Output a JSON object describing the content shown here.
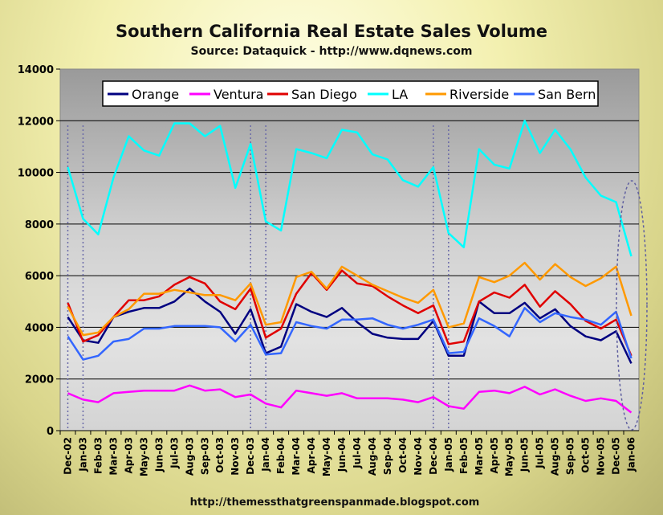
{
  "chart_data": {
    "type": "line",
    "title": "Southern California Real Estate Sales Volume",
    "subtitle": "Source: Dataquick - http://www.dqnews.com",
    "footer": "http://themessthatgreenspanmade.blogspot.com",
    "ylim": [
      0,
      14000
    ],
    "yticks": [
      0,
      2000,
      4000,
      6000,
      8000,
      10000,
      12000,
      14000
    ],
    "grid": true,
    "legend_position": "top",
    "categories": [
      "Dec-02",
      "Jan-03",
      "Feb-03",
      "Mar-03",
      "Apr-03",
      "May-03",
      "Jun-03",
      "Jul-03",
      "Aug-03",
      "Sep-03",
      "Oct-03",
      "Nov-03",
      "Dec-03",
      "Jan-04",
      "Feb-04",
      "Mar-04",
      "Apr-04",
      "May-04",
      "Jun-04",
      "Jul-04",
      "Aug-04",
      "Sep-04",
      "Oct-04",
      "Nov-04",
      "Dec-04",
      "Jan-05",
      "Feb-05",
      "Mar-05",
      "Apr-05",
      "May-05",
      "Jun-05",
      "Jul-05",
      "Aug-05",
      "Sep-05",
      "Oct-05",
      "Nov-05",
      "Dec-05",
      "Jan-06"
    ],
    "series": [
      {
        "name": "Orange",
        "color": "#000080",
        "values": [
          4400,
          3500,
          3400,
          4400,
          4600,
          4750,
          4750,
          5000,
          5500,
          5000,
          4600,
          3750,
          4700,
          3000,
          3250,
          4900,
          4600,
          4400,
          4750,
          4200,
          3750,
          3600,
          3550,
          3550,
          4250,
          2900,
          2900,
          5000,
          4550,
          4550,
          4950,
          4350,
          4700,
          4050,
          3650,
          3500,
          3850,
          2600
        ]
      },
      {
        "name": "Ventura",
        "color": "#ff00ff",
        "values": [
          1450,
          1200,
          1100,
          1450,
          1500,
          1550,
          1550,
          1550,
          1750,
          1550,
          1600,
          1300,
          1400,
          1050,
          900,
          1550,
          1450,
          1350,
          1450,
          1250,
          1250,
          1250,
          1200,
          1100,
          1300,
          950,
          850,
          1500,
          1550,
          1450,
          1700,
          1400,
          1600,
          1350,
          1150,
          1250,
          1150,
          700
        ]
      },
      {
        "name": "San Diego",
        "color": "#e00000",
        "values": [
          4950,
          3450,
          3700,
          4400,
          5050,
          5050,
          5200,
          5650,
          5950,
          5700,
          5000,
          4700,
          5500,
          3600,
          3950,
          5300,
          6100,
          5450,
          6200,
          5700,
          5600,
          5200,
          4850,
          4550,
          4850,
          3350,
          3450,
          5000,
          5350,
          5150,
          5650,
          4800,
          5400,
          4900,
          4250,
          3950,
          4300,
          2900
        ]
      },
      {
        "name": "LA",
        "color": "#00ffff",
        "values": [
          10200,
          8200,
          7600,
          9800,
          11400,
          10850,
          10650,
          11900,
          11900,
          11400,
          11800,
          9400,
          11100,
          8100,
          7750,
          10900,
          10750,
          10550,
          11650,
          11550,
          10700,
          10500,
          9700,
          9450,
          10200,
          7650,
          7100,
          10900,
          10300,
          10150,
          12000,
          10750,
          11650,
          10900,
          9800,
          9100,
          8850,
          6750
        ]
      },
      {
        "name": "Riverside",
        "color": "#ff9900",
        "values": [
          4800,
          3700,
          3800,
          4400,
          4700,
          5300,
          5300,
          5450,
          5350,
          5250,
          5250,
          5050,
          5700,
          4100,
          4200,
          5950,
          6150,
          5500,
          6350,
          6000,
          5650,
          5400,
          5150,
          4950,
          5450,
          4000,
          4150,
          5950,
          5750,
          6000,
          6500,
          5850,
          6450,
          5950,
          5600,
          5900,
          6350,
          4450
        ]
      },
      {
        "name": "San Bern",
        "color": "#3366ff",
        "values": [
          3650,
          2750,
          2900,
          3450,
          3550,
          3950,
          3950,
          4050,
          4050,
          4050,
          4000,
          3450,
          4100,
          2950,
          3000,
          4200,
          4050,
          3950,
          4300,
          4300,
          4350,
          4100,
          3950,
          4100,
          4300,
          3000,
          3050,
          4350,
          4050,
          3650,
          4750,
          4200,
          4550,
          4400,
          4300,
          4100,
          4600,
          2800
        ]
      }
    ]
  }
}
